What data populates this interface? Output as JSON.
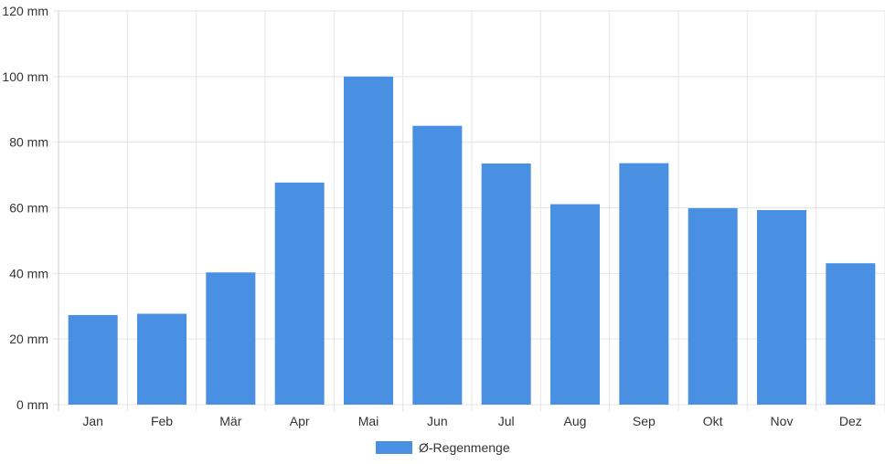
{
  "chart_data": {
    "type": "bar",
    "categories": [
      "Jan",
      "Feb",
      "Mär",
      "Apr",
      "Mai",
      "Jun",
      "Jul",
      "Aug",
      "Sep",
      "Okt",
      "Nov",
      "Dez"
    ],
    "series": [
      {
        "name": "Ø-Regenmenge",
        "color": "#4a90e2",
        "values": [
          27.3,
          27.7,
          40.3,
          67.7,
          100.0,
          85.0,
          73.5,
          61.1,
          73.6,
          59.9,
          59.3,
          43.1
        ]
      }
    ],
    "y_unit": "mm",
    "y_ticks": [
      "0 mm",
      "20 mm",
      "40 mm",
      "60 mm",
      "80 mm",
      "100 mm",
      "120 mm"
    ],
    "ylim": [
      0,
      120
    ],
    "grid": true,
    "legend": {
      "placement": "bottom-center",
      "label": "Ø-Regenmenge"
    }
  }
}
